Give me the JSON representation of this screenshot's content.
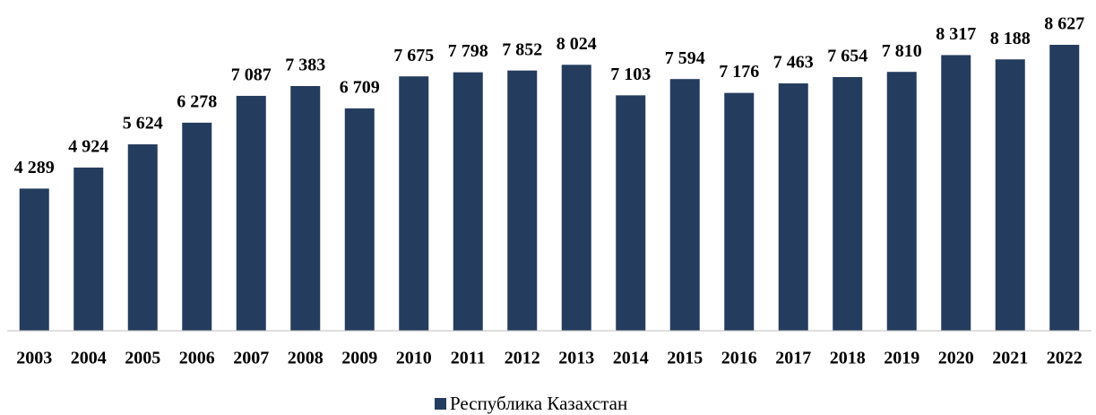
{
  "chart_data": {
    "type": "bar",
    "categories": [
      "2003",
      "2004",
      "2005",
      "2006",
      "2007",
      "2008",
      "2009",
      "2010",
      "2011",
      "2012",
      "2013",
      "2014",
      "2015",
      "2016",
      "2017",
      "2018",
      "2019",
      "2020",
      "2021",
      "2022"
    ],
    "series": [
      {
        "name": "Республика Казахстан",
        "color": "#243c5e",
        "values": [
          4289,
          4924,
          5624,
          6278,
          7087,
          7383,
          6709,
          7675,
          7798,
          7852,
          8024,
          7103,
          7594,
          7176,
          7463,
          7654,
          7810,
          8317,
          8188,
          8627
        ],
        "value_labels": [
          "4 289",
          "4 924",
          "5 624",
          "6 278",
          "7 087",
          "7 383",
          "6 709",
          "7 675",
          "7 798",
          "7 852",
          "8 024",
          "7 103",
          "7 594",
          "7 176",
          "7 463",
          "7 654",
          "7 810",
          "8 317",
          "8 188",
          "8 627"
        ]
      }
    ],
    "legend": "bottom"
  }
}
